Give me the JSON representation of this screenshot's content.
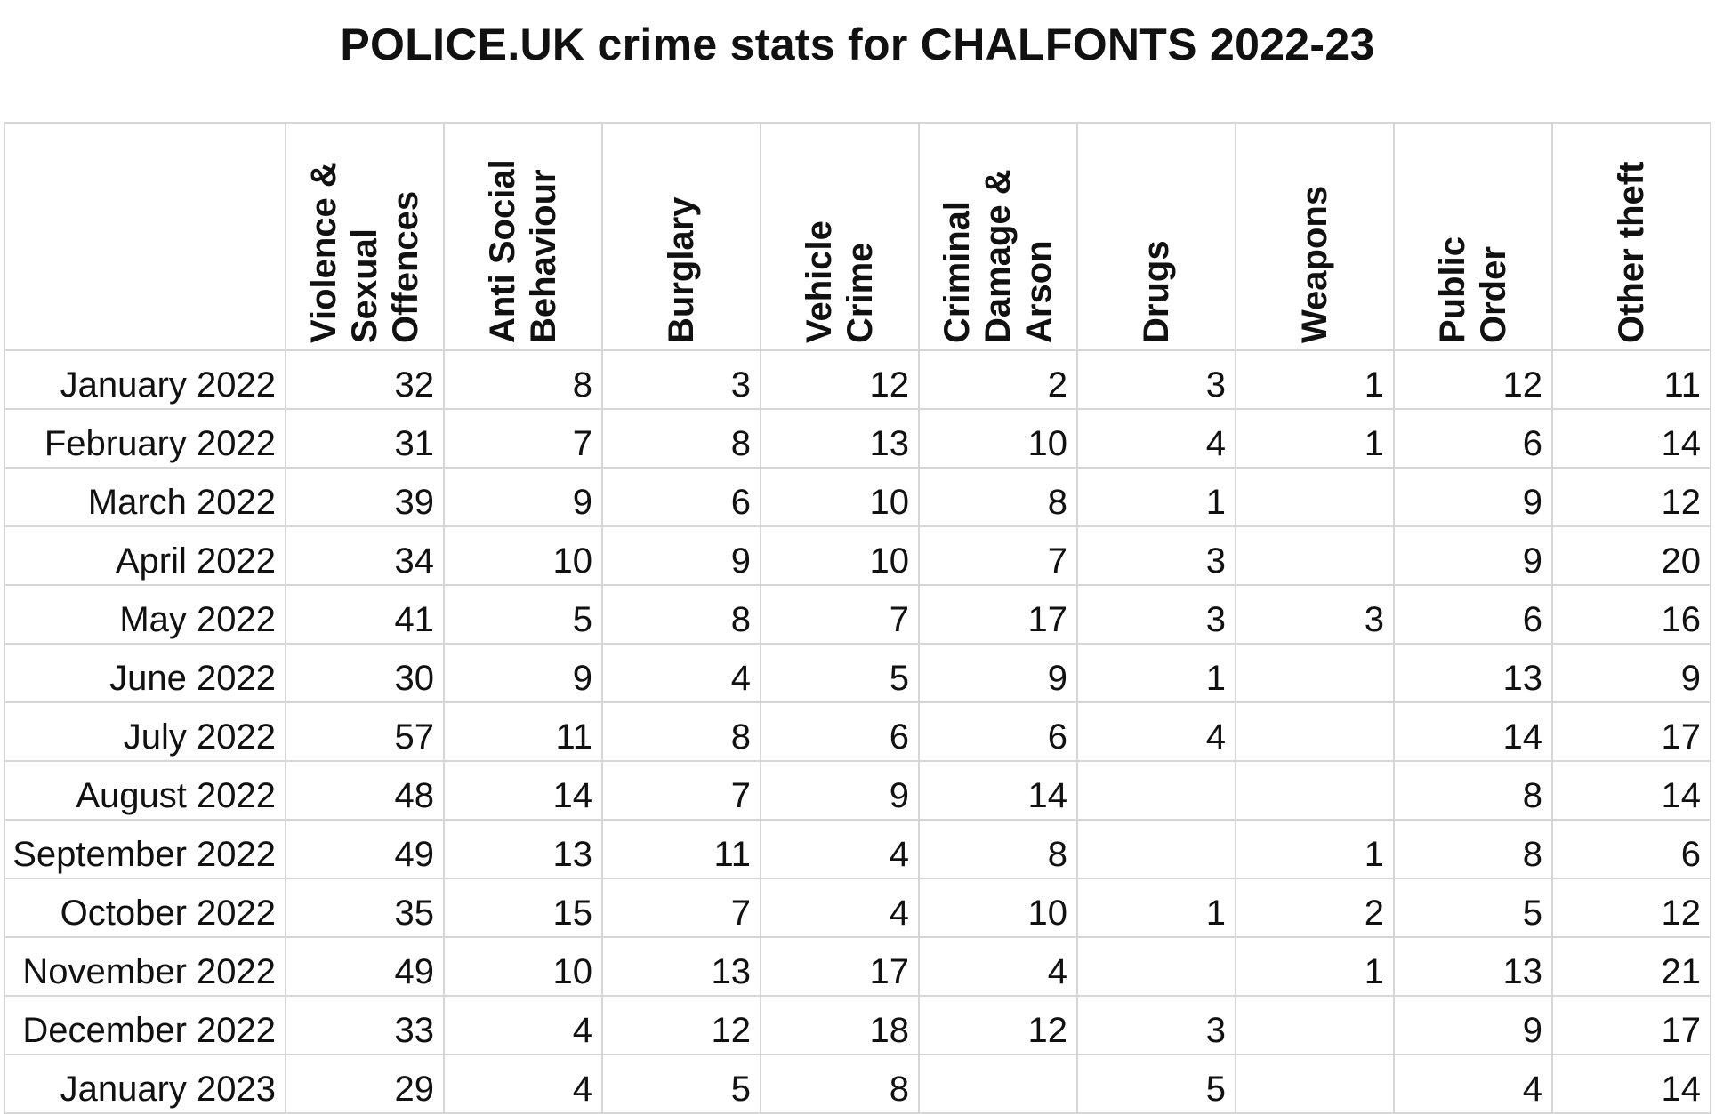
{
  "chart_data": {
    "type": "table",
    "title": "POLICE.UK crime stats for CHALFONTS 2022-23",
    "columns": [
      "Violence & Sexual Offences",
      "Anti Social Behaviour",
      "Burglary",
      "Vehicle Crime",
      "Criminal Damage & Arson",
      "Drugs",
      "Weapons",
      "Public Order",
      "Other theft"
    ],
    "rows": [
      {
        "month": "January 2022",
        "values": [
          "32",
          "8",
          "3",
          "12",
          "2",
          "3",
          "1",
          "12",
          "11"
        ]
      },
      {
        "month": "February 2022",
        "values": [
          "31",
          "7",
          "8",
          "13",
          "10",
          "4",
          "1",
          "6",
          "14"
        ]
      },
      {
        "month": "March 2022",
        "values": [
          "39",
          "9",
          "6",
          "10",
          "8",
          "1",
          "",
          "9",
          "12"
        ]
      },
      {
        "month": "April 2022",
        "values": [
          "34",
          "10",
          "9",
          "10",
          "7",
          "3",
          "",
          "9",
          "20"
        ]
      },
      {
        "month": "May 2022",
        "values": [
          "41",
          "5",
          "8",
          "7",
          "17",
          "3",
          "3",
          "6",
          "16"
        ]
      },
      {
        "month": "June 2022",
        "values": [
          "30",
          "9",
          "4",
          "5",
          "9",
          "1",
          "",
          "13",
          "9"
        ]
      },
      {
        "month": "July 2022",
        "values": [
          "57",
          "11",
          "8",
          "6",
          "6",
          "4",
          "",
          "14",
          "17"
        ]
      },
      {
        "month": "August 2022",
        "values": [
          "48",
          "14",
          "7",
          "9",
          "14",
          "",
          "",
          "8",
          "14"
        ]
      },
      {
        "month": "September 2022",
        "values": [
          "49",
          "13",
          "11",
          "4",
          "8",
          "",
          "1",
          "8",
          "6"
        ]
      },
      {
        "month": "October 2022",
        "values": [
          "35",
          "15",
          "7",
          "4",
          "10",
          "1",
          "2",
          "5",
          "12"
        ]
      },
      {
        "month": "November 2022",
        "values": [
          "49",
          "10",
          "13",
          "17",
          "4",
          "",
          "1",
          "13",
          "21"
        ]
      },
      {
        "month": "December 2022",
        "values": [
          "33",
          "4",
          "12",
          "18",
          "12",
          "3",
          "",
          "9",
          "17"
        ]
      },
      {
        "month": "January 2023",
        "values": [
          "29",
          "4",
          "5",
          "8",
          "",
          "5",
          "",
          "4",
          "14"
        ]
      }
    ]
  }
}
